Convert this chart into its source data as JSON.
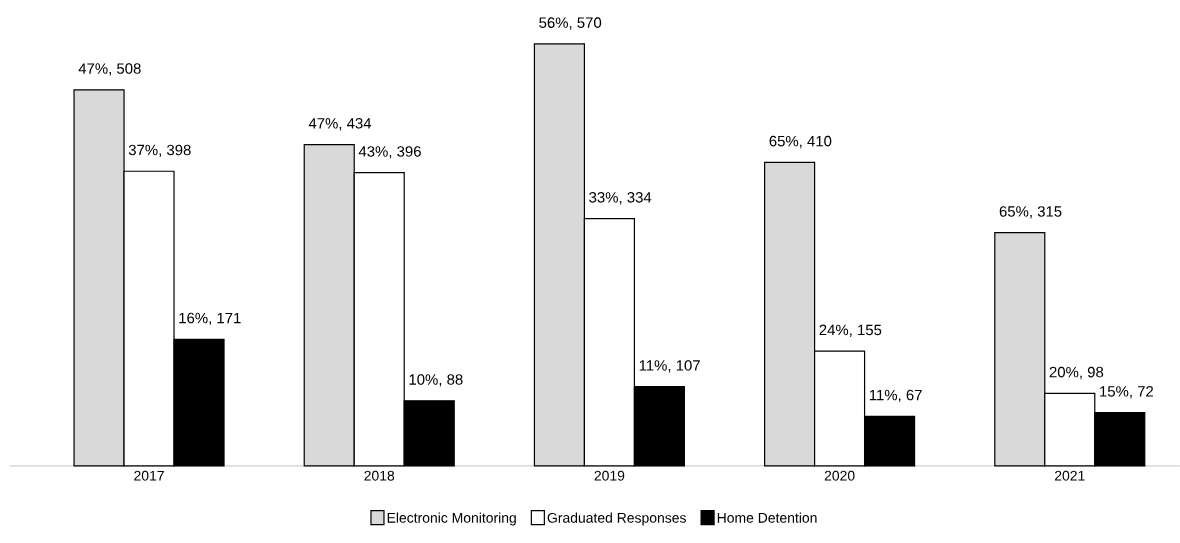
{
  "chart_data": {
    "type": "bar",
    "categories": [
      "2017",
      "2018",
      "2019",
      "2020",
      "2021"
    ],
    "series": [
      {
        "name": "Electronic Monitoring",
        "color": "#d9d9d9",
        "values": [
          508,
          434,
          570,
          410,
          315
        ],
        "value_labels": [
          "47%, 508",
          "47%, 434",
          "56%, 570",
          "65%, 410",
          "65%, 315"
        ]
      },
      {
        "name": "Graduated Responses",
        "color": "#ffffff",
        "values": [
          398,
          396,
          334,
          155,
          98
        ],
        "value_labels": [
          "37%, 398",
          "43%, 396",
          "33%, 334",
          "24%, 155",
          "20%, 98"
        ]
      },
      {
        "name": "Home Detention",
        "color": "#000000",
        "values": [
          171,
          88,
          107,
          67,
          72
        ],
        "value_labels": [
          "16%, 171",
          "10%, 88",
          "11%, 107",
          "11%, 67",
          "15%, 72"
        ]
      }
    ],
    "legend": "bottom"
  }
}
